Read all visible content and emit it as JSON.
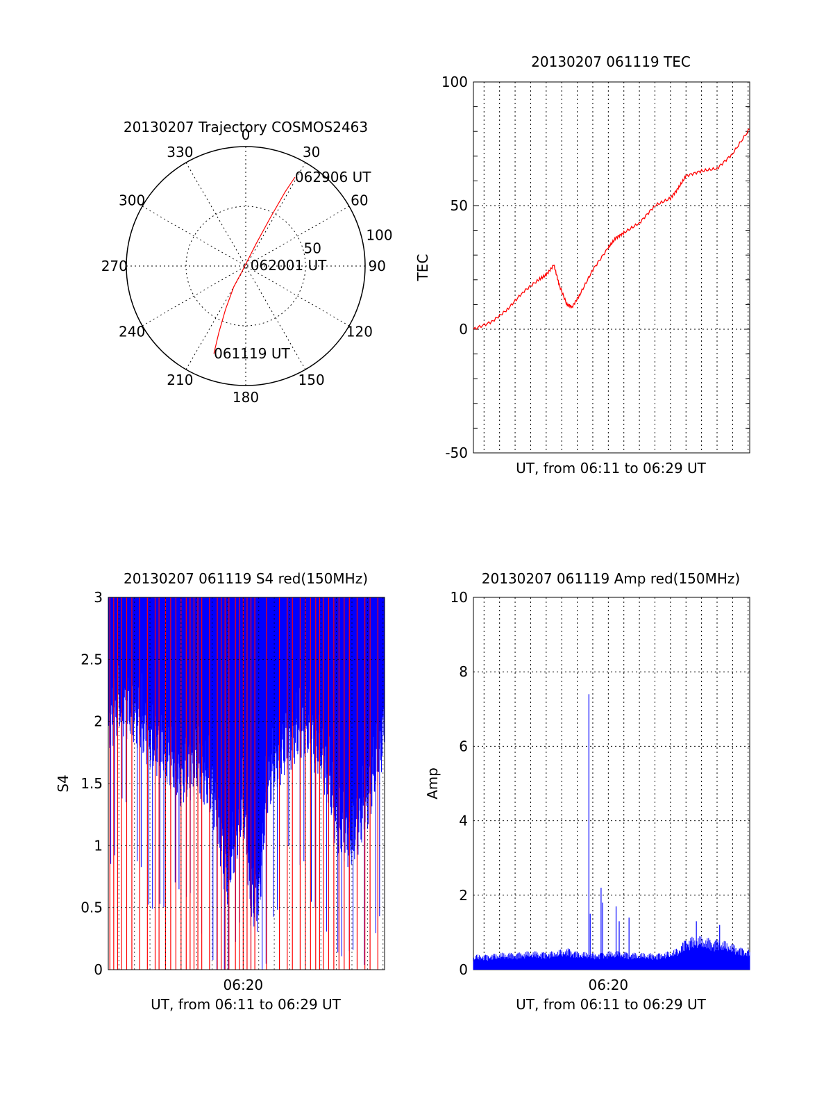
{
  "chart_data": [
    {
      "id": "polar",
      "type": "scatter",
      "title": "20130207 Trajectory COSMOS2463",
      "coordinate_system": "polar (azimuth degrees clockwise from north, radius = 90 - elevation)",
      "radial_range": [
        0,
        100
      ],
      "radial_circle_values": [
        50
      ],
      "radial_labels": [
        "50",
        "100"
      ],
      "angle_labels": [
        "0",
        "30",
        "60",
        "90",
        "120",
        "150",
        "180",
        "210",
        "240",
        "270",
        "300",
        "330"
      ],
      "grid": true,
      "series": [
        {
          "color": "#ff0000",
          "points": [
            {
              "az": 200,
              "r": 78
            },
            {
              "az": 202,
              "r": 60
            },
            {
              "az": 205,
              "r": 40
            },
            {
              "az": 210,
              "r": 20
            },
            {
              "az": 215,
              "r": 5
            },
            {
              "az": 25,
              "r": 20
            },
            {
              "az": 27,
              "r": 45
            },
            {
              "az": 28,
              "r": 70
            },
            {
              "az": 29,
              "r": 85
            }
          ]
        }
      ],
      "annotations": [
        {
          "text": "062906 UT",
          "az": 29,
          "r": 85
        },
        {
          "text": "062001 UT",
          "az": 80,
          "r": 4
        },
        {
          "text": "061119 UT",
          "az": 200,
          "r": 78
        }
      ]
    },
    {
      "id": "tec",
      "type": "line",
      "title": "20130207 061119 TEC",
      "xlabel": "UT, from 06:11 to 06:29 UT",
      "ylabel": "TEC",
      "xlim": [
        "06:11:19",
        "06:29:06"
      ],
      "ylim": [
        -50,
        100
      ],
      "yticks": [
        -50,
        0,
        50,
        100
      ],
      "grid": true,
      "series": [
        {
          "color": "#ff0000",
          "x": [
            "06:11:19",
            "06:12:30",
            "06:13:30",
            "06:14:30",
            "06:15:30",
            "06:16:00",
            "06:16:30",
            "06:16:50",
            "06:17:20",
            "06:17:40",
            "06:18:10",
            "06:19:00",
            "06:20:00",
            "06:20:30",
            "06:21:00",
            "06:22:00",
            "06:23:00",
            "06:24:00",
            "06:24:30",
            "06:25:00",
            "06:26:00",
            "06:27:00",
            "06:28:00",
            "06:29:06"
          ],
          "y": [
            0,
            3,
            8,
            15,
            20,
            22,
            26,
            18,
            10,
            9,
            14,
            24,
            33,
            37,
            39,
            43,
            50,
            53,
            57,
            62,
            64,
            65,
            71,
            81
          ]
        }
      ]
    },
    {
      "id": "s4",
      "type": "line",
      "title": "20130207 061119 S4 red(150MHz)",
      "xlabel": "UT, from 06:11 to 06:29 UT",
      "ylabel": "S4",
      "xlim": [
        "06:11:19",
        "06:29:06"
      ],
      "ylim": [
        0,
        3
      ],
      "yticks": [
        "0",
        "0.5",
        "1",
        "1.5",
        "2",
        "2.5",
        "3"
      ],
      "xticks": [
        "06:20"
      ],
      "grid": true,
      "series": [
        {
          "color": "#0000ff",
          "x": [
            "06:11:19",
            "06:12:00",
            "06:13:00",
            "06:14:00",
            "06:15:00",
            "06:16:00",
            "06:17:00",
            "06:18:00",
            "06:18:30",
            "06:19:00",
            "06:20:00",
            "06:20:30",
            "06:21:00",
            "06:21:30",
            "06:22:00",
            "06:23:00",
            "06:24:00",
            "06:25:00",
            "06:25:30",
            "06:26:00",
            "06:27:00",
            "06:28:00",
            "06:29:06"
          ],
          "y": [
            2.4,
            2.6,
            2.5,
            2.3,
            2.2,
            2.0,
            2.1,
            1.9,
            1.5,
            1.2,
            1.8,
            1.0,
            1.0,
            1.9,
            2.1,
            2.3,
            2.4,
            2.2,
            2.0,
            1.6,
            1.5,
            1.8,
            2.4
          ],
          "fill_band": {
            "lower_min": 1.2,
            "upper": 3
          }
        },
        {
          "color": "#ff0000",
          "spike_times": [
            "06:11:25",
            "06:11:40",
            "06:11:55",
            "06:12:10",
            "06:12:30",
            "06:12:50",
            "06:13:20",
            "06:13:50",
            "06:14:20",
            "06:14:35",
            "06:15:00",
            "06:15:20",
            "06:15:40",
            "06:16:00",
            "06:16:20",
            "06:16:35",
            "06:16:50",
            "06:17:05",
            "06:17:20",
            "06:17:50",
            "06:18:20",
            "06:18:35",
            "06:18:50",
            "06:19:05",
            "06:19:30",
            "06:19:45",
            "06:20:00",
            "06:20:15",
            "06:20:30",
            "06:20:45",
            "06:21:30",
            "06:22:20",
            "06:22:50",
            "06:23:10",
            "06:23:40",
            "06:24:00",
            "06:24:20",
            "06:24:40",
            "06:24:55",
            "06:25:10",
            "06:25:30",
            "06:25:50",
            "06:26:10",
            "06:26:30",
            "06:26:50",
            "06:27:20",
            "06:27:50",
            "06:28:10",
            "06:28:40"
          ],
          "spike_range": [
            0,
            3
          ]
        }
      ]
    },
    {
      "id": "amp",
      "type": "line",
      "title": "20130207 061119 Amp red(150MHz)",
      "xlabel": "UT, from 06:11 to 06:29 UT",
      "ylabel": "Amp",
      "xlim": [
        "06:11:19",
        "06:29:06"
      ],
      "ylim": [
        0,
        10
      ],
      "yticks": [
        "0",
        "2",
        "4",
        "6",
        "8",
        "10"
      ],
      "xticks": [
        "06:20"
      ],
      "grid": true,
      "series": [
        {
          "color": "#0000ff",
          "baseline": {
            "x": [
              "06:11:19",
              "06:13:00",
              "06:15:00",
              "06:16:30",
              "06:17:30",
              "06:18:00",
              "06:19:00",
              "06:20:00",
              "06:21:00",
              "06:22:00",
              "06:23:00",
              "06:24:00",
              "06:24:30",
              "06:25:00",
              "06:26:00",
              "06:27:00",
              "06:28:00",
              "06:29:06"
            ],
            "y": [
              0.4,
              0.45,
              0.5,
              0.5,
              0.6,
              0.5,
              0.45,
              0.5,
              0.5,
              0.45,
              0.45,
              0.5,
              0.6,
              0.9,
              0.9,
              0.85,
              0.7,
              0.55
            ]
          },
          "peaks": [
            {
              "x": "06:18:45",
              "y": 7.4
            },
            {
              "x": "06:18:50",
              "y": 1.5
            },
            {
              "x": "06:19:32",
              "y": 2.2
            },
            {
              "x": "06:19:38",
              "y": 1.8
            },
            {
              "x": "06:20:30",
              "y": 1.7
            },
            {
              "x": "06:20:42",
              "y": 1.3
            },
            {
              "x": "06:21:20",
              "y": 1.4
            },
            {
              "x": "06:25:40",
              "y": 1.3
            },
            {
              "x": "06:27:10",
              "y": 1.2
            }
          ]
        }
      ]
    }
  ]
}
